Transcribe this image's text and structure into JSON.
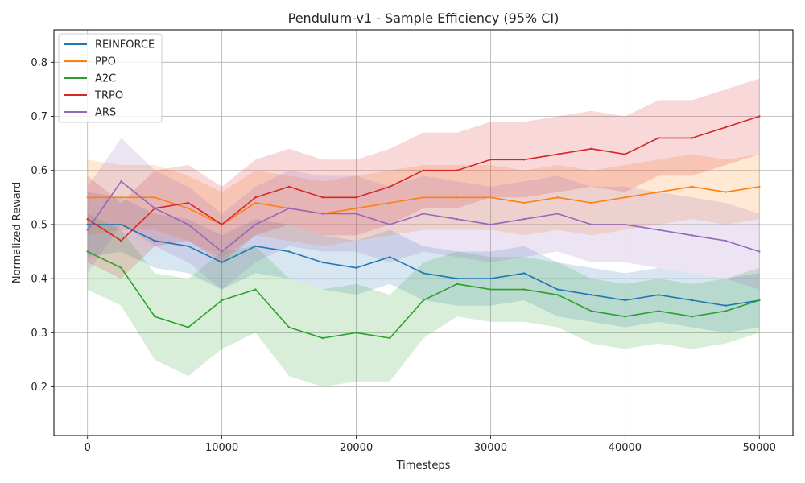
{
  "chart_data": {
    "type": "line",
    "title": "Pendulum-v1 - Sample Efficiency (95% CI)",
    "xlabel": "Timesteps",
    "ylabel": "Normalized Reward",
    "xlim": [
      -2500,
      52500
    ],
    "ylim": [
      0.11,
      0.86
    ],
    "xticks": [
      0,
      10000,
      20000,
      30000,
      40000,
      50000
    ],
    "xtick_labels": [
      "0",
      "10000",
      "20000",
      "30000",
      "40000",
      "50000"
    ],
    "yticks": [
      0.2,
      0.3,
      0.4,
      0.5,
      0.6,
      0.7,
      0.8
    ],
    "ytick_labels": [
      "0.2",
      "0.3",
      "0.4",
      "0.5",
      "0.6",
      "0.7",
      "0.8"
    ],
    "grid": true,
    "legend_position": "top-left",
    "confidence_band": "95% CI",
    "x": [
      0,
      2500,
      5000,
      7500,
      10000,
      12500,
      15000,
      17500,
      20000,
      22500,
      25000,
      27500,
      30000,
      32500,
      35000,
      37500,
      40000,
      42500,
      45000,
      47500,
      50000
    ],
    "series": [
      {
        "name": "REINFORCE",
        "color": "#1f77b4",
        "values": [
          0.5,
          0.5,
          0.47,
          0.46,
          0.43,
          0.46,
          0.45,
          0.43,
          0.42,
          0.44,
          0.41,
          0.4,
          0.4,
          0.41,
          0.38,
          0.37,
          0.36,
          0.37,
          0.36,
          0.35,
          0.36
        ],
        "ci_half_width": [
          0.06,
          0.05,
          0.05,
          0.05,
          0.05,
          0.05,
          0.05,
          0.05,
          0.05,
          0.05,
          0.05,
          0.05,
          0.05,
          0.05,
          0.05,
          0.05,
          0.05,
          0.05,
          0.05,
          0.05,
          0.05
        ]
      },
      {
        "name": "PPO",
        "color": "#ff7f0e",
        "values": [
          0.55,
          0.55,
          0.55,
          0.53,
          0.5,
          0.54,
          0.53,
          0.52,
          0.53,
          0.54,
          0.55,
          0.55,
          0.55,
          0.54,
          0.55,
          0.54,
          0.55,
          0.56,
          0.57,
          0.56,
          0.57
        ],
        "ci_half_width": [
          0.07,
          0.06,
          0.06,
          0.06,
          0.06,
          0.06,
          0.06,
          0.06,
          0.06,
          0.06,
          0.06,
          0.06,
          0.06,
          0.06,
          0.06,
          0.06,
          0.06,
          0.06,
          0.06,
          0.06,
          0.06
        ]
      },
      {
        "name": "A2C",
        "color": "#2ca02c",
        "values": [
          0.45,
          0.42,
          0.33,
          0.31,
          0.36,
          0.38,
          0.31,
          0.29,
          0.3,
          0.29,
          0.36,
          0.39,
          0.38,
          0.38,
          0.37,
          0.34,
          0.33,
          0.34,
          0.33,
          0.34,
          0.36
        ],
        "ci_half_width": [
          0.07,
          0.07,
          0.08,
          0.09,
          0.09,
          0.08,
          0.09,
          0.09,
          0.09,
          0.08,
          0.07,
          0.06,
          0.06,
          0.06,
          0.06,
          0.06,
          0.06,
          0.06,
          0.06,
          0.06,
          0.06
        ]
      },
      {
        "name": "TRPO",
        "color": "#d62728",
        "values": [
          0.51,
          0.47,
          0.53,
          0.54,
          0.5,
          0.55,
          0.57,
          0.55,
          0.55,
          0.57,
          0.6,
          0.6,
          0.62,
          0.62,
          0.63,
          0.64,
          0.63,
          0.66,
          0.66,
          0.68,
          0.7
        ],
        "ci_half_width": [
          0.08,
          0.07,
          0.07,
          0.07,
          0.07,
          0.07,
          0.07,
          0.07,
          0.07,
          0.07,
          0.07,
          0.07,
          0.07,
          0.07,
          0.07,
          0.07,
          0.07,
          0.07,
          0.07,
          0.07,
          0.07
        ]
      },
      {
        "name": "ARS",
        "color": "#9467bd",
        "values": [
          0.49,
          0.58,
          0.53,
          0.5,
          0.45,
          0.5,
          0.53,
          0.52,
          0.52,
          0.5,
          0.52,
          0.51,
          0.5,
          0.51,
          0.52,
          0.5,
          0.5,
          0.49,
          0.48,
          0.47,
          0.45
        ],
        "ci_half_width": [
          0.08,
          0.08,
          0.07,
          0.07,
          0.07,
          0.07,
          0.07,
          0.07,
          0.07,
          0.07,
          0.07,
          0.07,
          0.07,
          0.07,
          0.07,
          0.07,
          0.07,
          0.07,
          0.07,
          0.07,
          0.07
        ]
      }
    ]
  }
}
